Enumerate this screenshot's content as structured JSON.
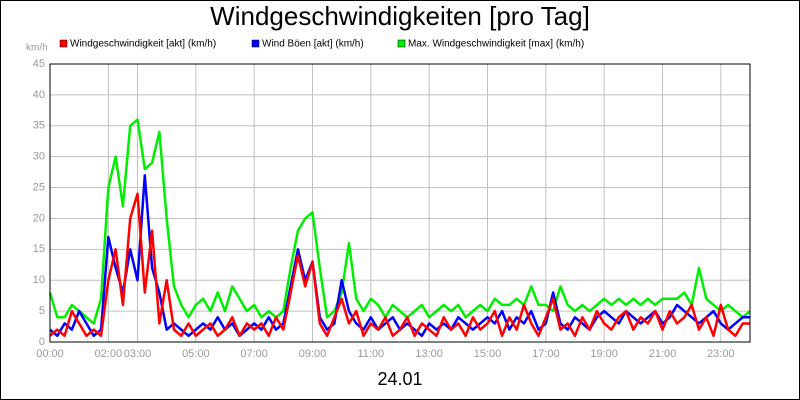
{
  "chart_data": {
    "type": "line",
    "title": "Windgeschwindigkeiten [pro Tag]",
    "y_label": "km/h",
    "x_label": "24.01",
    "x": [
      0,
      0.25,
      0.5,
      0.75,
      1,
      1.25,
      1.5,
      1.75,
      2,
      2.25,
      2.5,
      2.75,
      3,
      3.25,
      3.5,
      3.75,
      4,
      4.25,
      4.5,
      4.75,
      5,
      5.25,
      5.5,
      5.75,
      6,
      6.25,
      6.5,
      6.75,
      7,
      7.25,
      7.5,
      7.75,
      8,
      8.25,
      8.5,
      8.75,
      9,
      9.25,
      9.5,
      9.75,
      10,
      10.25,
      10.5,
      10.75,
      11,
      11.25,
      11.5,
      11.75,
      12,
      12.25,
      12.5,
      12.75,
      13,
      13.25,
      13.5,
      13.75,
      14,
      14.25,
      14.5,
      14.75,
      15,
      15.25,
      15.5,
      15.75,
      16,
      16.25,
      16.5,
      16.75,
      17,
      17.25,
      17.5,
      17.75,
      18,
      18.25,
      18.5,
      18.75,
      19,
      19.25,
      19.5,
      19.75,
      20,
      20.25,
      20.5,
      20.75,
      21,
      21.25,
      21.5,
      21.75,
      22,
      22.25,
      22.5,
      22.75,
      23,
      23.25,
      23.5,
      23.75,
      24
    ],
    "series": [
      {
        "name": "Windgeschwindigkeit [akt] (km/h)",
        "color": "#ff0000",
        "values": [
          1,
          2,
          1,
          5,
          3,
          1,
          2,
          1,
          10,
          15,
          6,
          20,
          24,
          8,
          18,
          3,
          10,
          2,
          1,
          3,
          1,
          2,
          3,
          1,
          2,
          4,
          1,
          3,
          2,
          3,
          1,
          4,
          2,
          8,
          14,
          9,
          13,
          3,
          1,
          4,
          7,
          3,
          5,
          1,
          3,
          2,
          4,
          1,
          2,
          4,
          1,
          3,
          2,
          1,
          4,
          2,
          3,
          1,
          4,
          2,
          3,
          5,
          1,
          4,
          2,
          6,
          3,
          1,
          4,
          7,
          2,
          3,
          1,
          4,
          2,
          5,
          3,
          2,
          4,
          5,
          2,
          4,
          3,
          5,
          2,
          5,
          3,
          4,
          6,
          2,
          4,
          1,
          6,
          2,
          1,
          3,
          3
        ]
      },
      {
        "name": "Wind Böen [akt] (km/h)",
        "color": "#0000ff",
        "values": [
          2,
          1,
          3,
          2,
          5,
          3,
          1,
          2,
          17,
          12,
          8,
          15,
          10,
          27,
          12,
          8,
          2,
          3,
          2,
          1,
          2,
          3,
          2,
          4,
          2,
          3,
          1,
          2,
          3,
          2,
          4,
          2,
          3,
          9,
          15,
          10,
          13,
          4,
          2,
          3,
          10,
          5,
          3,
          2,
          4,
          2,
          3,
          4,
          2,
          3,
          2,
          1,
          3,
          2,
          3,
          2,
          4,
          3,
          2,
          3,
          4,
          3,
          5,
          2,
          4,
          3,
          5,
          2,
          3,
          8,
          3,
          2,
          4,
          3,
          2,
          4,
          5,
          4,
          3,
          5,
          4,
          3,
          4,
          5,
          3,
          4,
          6,
          5,
          4,
          3,
          4,
          5,
          3,
          2,
          3,
          4,
          4
        ]
      },
      {
        "name": "Max. Windgeschwindigkeit [max] (km/h)",
        "color": "#00ee00",
        "values": [
          8,
          4,
          4,
          6,
          5,
          4,
          3,
          7,
          25,
          30,
          22,
          35,
          36,
          28,
          29,
          34,
          20,
          9,
          6,
          4,
          6,
          7,
          5,
          8,
          5,
          9,
          7,
          5,
          6,
          4,
          5,
          4,
          5,
          12,
          18,
          20,
          21,
          12,
          4,
          5,
          8,
          16,
          7,
          5,
          7,
          6,
          4,
          6,
          5,
          4,
          5,
          6,
          4,
          5,
          6,
          5,
          6,
          4,
          5,
          6,
          5,
          7,
          6,
          6,
          7,
          6,
          9,
          6,
          6,
          5,
          9,
          6,
          5,
          6,
          5,
          6,
          7,
          6,
          7,
          6,
          7,
          6,
          7,
          6,
          7,
          7,
          7,
          8,
          6,
          12,
          7,
          6,
          5,
          6,
          5,
          4,
          5
        ]
      }
    ],
    "xlim": [
      0,
      24
    ],
    "ylim": [
      0,
      45
    ],
    "xticks": [
      {
        "value": 0,
        "label": "00:00"
      },
      {
        "value": 2,
        "label": "02:00"
      },
      {
        "value": 3,
        "label": "03:00"
      },
      {
        "value": 5,
        "label": "05:00"
      },
      {
        "value": 7,
        "label": "07:00"
      },
      {
        "value": 9,
        "label": "09:00"
      },
      {
        "value": 11,
        "label": "11:00"
      },
      {
        "value": 13,
        "label": "13:00"
      },
      {
        "value": 15,
        "label": "15:00"
      },
      {
        "value": 17,
        "label": "17:00"
      },
      {
        "value": 19,
        "label": "19:00"
      },
      {
        "value": 21,
        "label": "21:00"
      },
      {
        "value": 23,
        "label": "23:00"
      }
    ],
    "yticks": [
      0,
      5,
      10,
      15,
      20,
      25,
      30,
      35,
      40,
      45
    ],
    "grid": true
  }
}
